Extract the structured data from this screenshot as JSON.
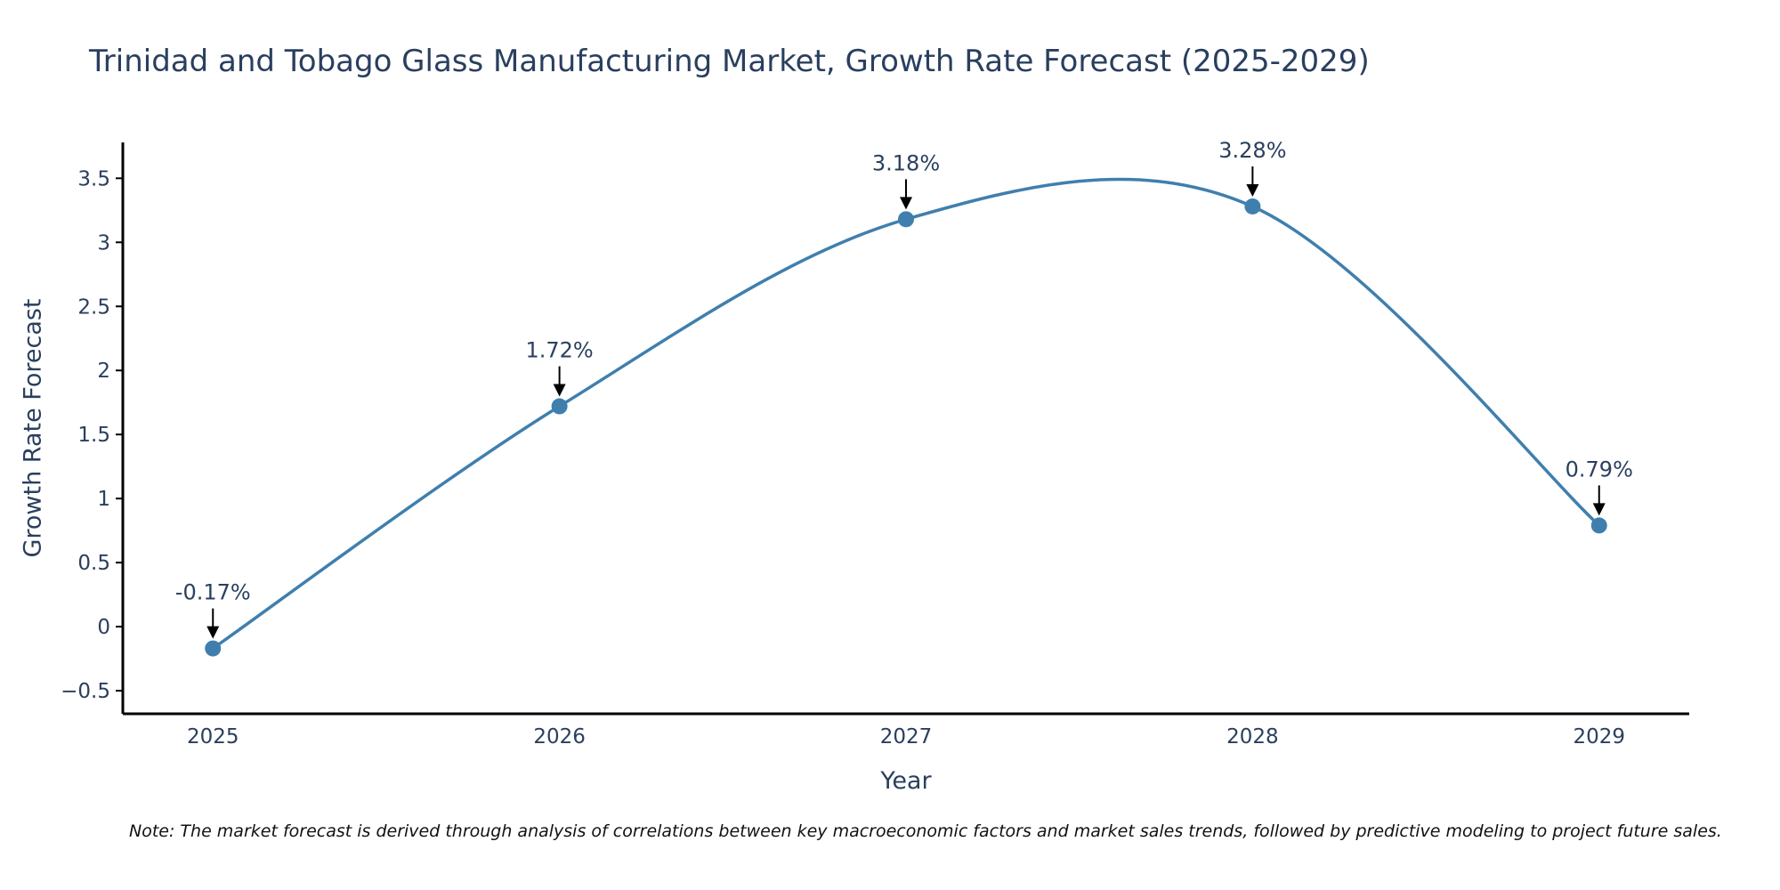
{
  "chart_data": {
    "type": "line",
    "title": "Trinidad and Tobago Glass Manufacturing Market, Growth Rate Forecast (2025-2029)",
    "xlabel": "Year",
    "ylabel": "Growth Rate Forecast",
    "categories": [
      "2025",
      "2026",
      "2027",
      "2028",
      "2029"
    ],
    "series": [
      {
        "name": "Growth Rate Forecast",
        "values": [
          -0.17,
          1.72,
          3.18,
          3.28,
          0.79
        ],
        "labels": [
          "-0.17%",
          "1.72%",
          "3.18%",
          "3.28%",
          "0.79%"
        ],
        "color": "#3f7fae"
      }
    ],
    "xlim": [
      2024.74,
      2029.26
    ],
    "ylim": [
      -0.68,
      3.78
    ],
    "yticks": [
      -0.5,
      0,
      0.5,
      1,
      1.5,
      2,
      2.5,
      3,
      3.5
    ],
    "ytick_labels": [
      "−0.5",
      "0",
      "0.5",
      "1",
      "1.5",
      "2",
      "2.5",
      "3",
      "3.5"
    ],
    "xtick_labels": [
      "2025",
      "2026",
      "2027",
      "2028",
      "2029"
    ],
    "grid": false,
    "note": "Note: The market forecast is derived through analysis of correlations between key macroeconomic factors and market sales trends, followed by predictive modeling to project future sales."
  },
  "colors": {
    "line": "#3f7fae",
    "marker": "#3f7fae",
    "axis": "#000000",
    "text": "#2a3f5f"
  }
}
